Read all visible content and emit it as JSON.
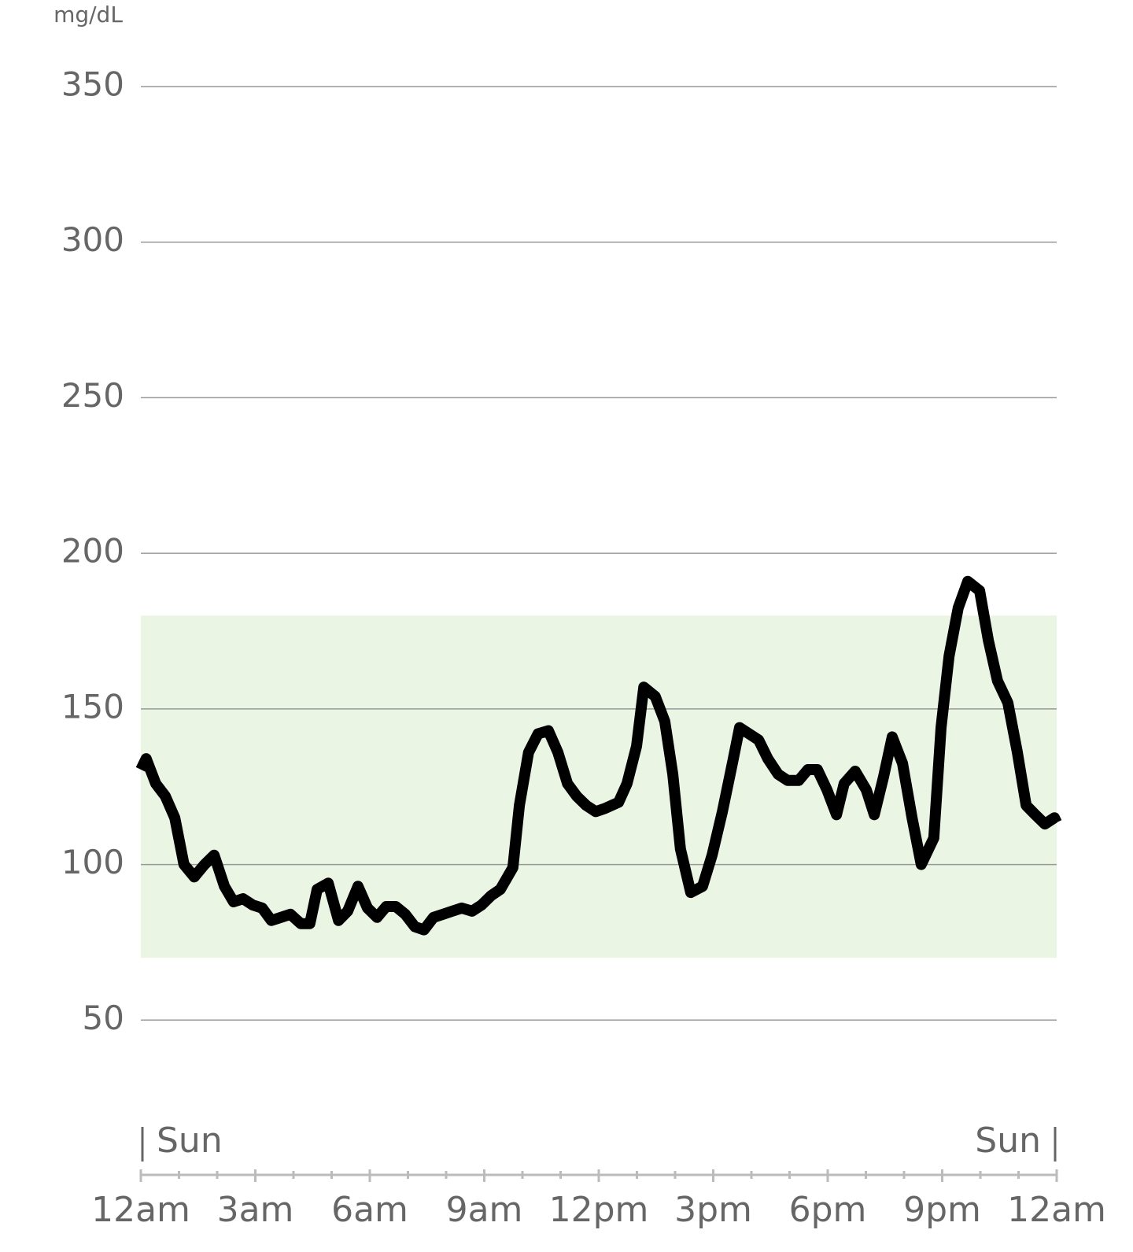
{
  "chart_data": {
    "type": "line",
    "y_label": "mg/dL",
    "ylim": [
      0,
      350
    ],
    "yticks": [
      50,
      100,
      150,
      200,
      250,
      300,
      350
    ],
    "grid": true,
    "target_range": [
      70,
      180
    ],
    "target_color": "#ebf5e4",
    "xlim": [
      0,
      24
    ],
    "xticks": [
      {
        "value": 0,
        "label": "12am"
      },
      {
        "value": 3,
        "label": "3am"
      },
      {
        "value": 6,
        "label": "6am"
      },
      {
        "value": 9,
        "label": "9am"
      },
      {
        "value": 12,
        "label": "12pm"
      },
      {
        "value": 15,
        "label": "3pm"
      },
      {
        "value": 18,
        "label": "6pm"
      },
      {
        "value": 21,
        "label": "9pm"
      },
      {
        "value": 24,
        "label": "12am"
      }
    ],
    "xminorticks": [
      1,
      2,
      4,
      5,
      7,
      8,
      10,
      11,
      13,
      14,
      16,
      17,
      19,
      20,
      22,
      23
    ],
    "day_labels": [
      {
        "value": 0,
        "label": "Sun"
      },
      {
        "value": 24,
        "label": "Sun"
      }
    ],
    "series": [
      {
        "color": "#000000",
        "x": [
          0,
          0.14,
          0.39,
          0.64,
          0.89,
          1.13,
          1.4,
          1.67,
          1.92,
          2.19,
          2.43,
          2.68,
          2.93,
          3.18,
          3.42,
          3.67,
          3.92,
          4.19,
          4.43,
          4.62,
          4.91,
          5.18,
          5.42,
          5.69,
          5.94,
          6.19,
          6.43,
          6.68,
          6.93,
          7.18,
          7.42,
          7.67,
          7.92,
          8.16,
          8.41,
          8.68,
          8.93,
          9.18,
          9.42,
          9.75,
          9.92,
          10.16,
          10.41,
          10.68,
          10.93,
          11.18,
          11.42,
          11.67,
          11.92,
          12.16,
          12.52,
          12.74,
          12.99,
          13.18,
          13.48,
          13.73,
          13.94,
          14.14,
          14.41,
          14.72,
          14.97,
          15.24,
          15.51,
          15.69,
          15.94,
          16.19,
          16.43,
          16.7,
          16.95,
          17.24,
          17.48,
          17.73,
          17.98,
          18.23,
          18.43,
          18.72,
          19.01,
          19.22,
          19.46,
          19.69,
          19.96,
          20.21,
          20.45,
          20.78,
          20.97,
          21.18,
          21.42,
          21.67,
          21.98,
          22.21,
          22.45,
          22.72,
          22.97,
          23.2,
          23.44,
          23.69,
          23.94,
          24
        ],
        "values": [
          130.5,
          134,
          126,
          122,
          115,
          100,
          96,
          100,
          103,
          93,
          88,
          89,
          87,
          86,
          82,
          83,
          84,
          81,
          81,
          92,
          94,
          82,
          85,
          93,
          86,
          83,
          86.5,
          86.5,
          84,
          80,
          79,
          83,
          84,
          85,
          86,
          85,
          87,
          90,
          92,
          99,
          119,
          136,
          142,
          143,
          136,
          126,
          122,
          119,
          117,
          118,
          120,
          126,
          138,
          157,
          154,
          146,
          129,
          105,
          91,
          93,
          103,
          117,
          133,
          144,
          142,
          140,
          134,
          129,
          127,
          127,
          130.5,
          130.5,
          124,
          116,
          126,
          130,
          124,
          116,
          128,
          141,
          132.5,
          115,
          100,
          108.5,
          144,
          167,
          182.5,
          191,
          188,
          172,
          159,
          152,
          136,
          119,
          116,
          113,
          115,
          113.5
        ]
      }
    ]
  }
}
